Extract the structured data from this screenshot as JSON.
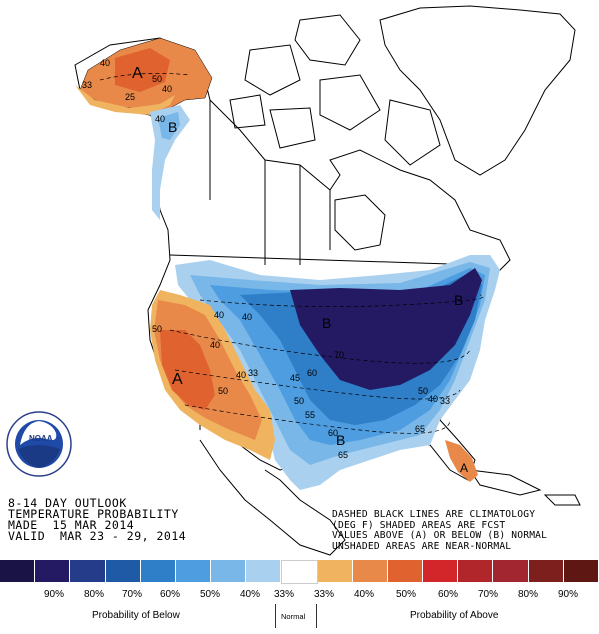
{
  "title": {
    "line1": "8-14 DAY OUTLOOK",
    "line2": "TEMPERATURE PROBABILITY",
    "line3": "MADE  15 MAR 2014",
    "line4": "VALID  MAR 23 - 29, 2014"
  },
  "notes": {
    "line1": "DASHED BLACK LINES ARE CLIMATOLOGY",
    "line2": "(DEG F) SHADED AREAS ARE FCST",
    "line3": "VALUES ABOVE (A) OR BELOW (B) NORMAL",
    "line4": "UNSHADED AREAS ARE NEAR-NORMAL"
  },
  "logo": {
    "text": "NOAA"
  },
  "map_labels": {
    "alaska_a": "A",
    "alaska_50": "50",
    "alaska_40": "40",
    "alaska_40b": "40",
    "alaska_33": "33",
    "alaska_25": "25",
    "alaska_b": "B",
    "alaska_b40": "40",
    "west_a": "A",
    "west_50a": "50",
    "west_50b": "50",
    "west_40": "40",
    "west_40b": "40",
    "west_33": "33",
    "west_40c": "40",
    "central_b": "B",
    "central_40": "40",
    "central_60": "60",
    "central_45": "45",
    "central_50": "50",
    "central_55": "55",
    "central_60b": "60",
    "central_65": "65",
    "central_70": "70",
    "ne_b": "B",
    "se_b": "B",
    "se_50": "50",
    "se_40": "40",
    "se_33": "33",
    "se_65": "65",
    "fl_a": "A"
  },
  "legend": {
    "colors": [
      "#1a1446",
      "#231a63",
      "#253c8a",
      "#1f5aa6",
      "#2f7fc8",
      "#4d9de0",
      "#78b7e8",
      "#a9d0ef",
      "#ffffff",
      "#f0b461",
      "#e8894a",
      "#e0622e",
      "#d3262b",
      "#b0262a",
      "#a2262f",
      "#7d1f1c",
      "#5f1713"
    ],
    "labels": [
      "90%",
      "80%",
      "70%",
      "60%",
      "50%",
      "40%",
      "33%",
      "",
      "33%",
      "40%",
      "50%",
      "60%",
      "70%",
      "80%",
      "90%"
    ]
  },
  "legend_titles": {
    "below": "Probability of Below",
    "normal": "Normal",
    "above": "Probability of Above"
  }
}
